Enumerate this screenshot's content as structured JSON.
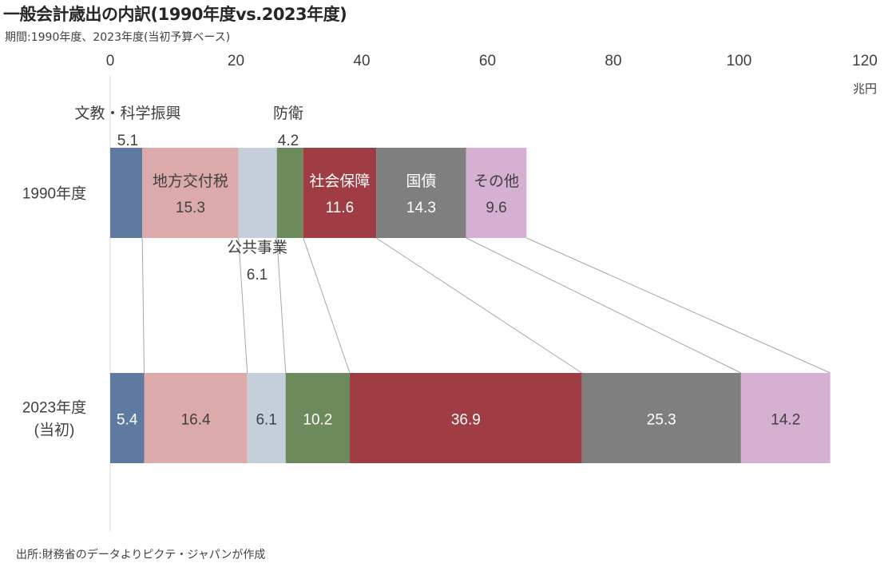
{
  "chart_data": {
    "type": "bar",
    "stacked": true,
    "orientation": "horizontal",
    "title": "一般会計歳出の内訳(1990年度vs.2023年度)",
    "subtitle": "期間:1990年度、2023年度(当初予算ベース)",
    "source": "出所:財務省のデータよりピクテ・ジャパンが作成",
    "xlabel": "兆円",
    "xlim": [
      0,
      120
    ],
    "xticks": [
      "0",
      "20",
      "40",
      "60",
      "80",
      "100",
      "120"
    ],
    "categories": [
      "1990年度",
      "2023年度\n(当初)"
    ],
    "category_labels": [
      [
        "1990年度"
      ],
      [
        "2023年度",
        "(当初)"
      ]
    ],
    "series": [
      {
        "name": "文教・科学振興",
        "color": "#5f7aa0",
        "values": [
          5.1,
          5.4
        ]
      },
      {
        "name": "地方交付税",
        "color": "#dcaaab",
        "values": [
          15.3,
          16.4
        ]
      },
      {
        "name": "公共事業",
        "color": "#c4cfdb",
        "values": [
          6.1,
          6.1
        ]
      },
      {
        "name": "防衛",
        "color": "#6d8a5d",
        "values": [
          4.2,
          10.2
        ]
      },
      {
        "name": "社会保障",
        "color": "#a03c43",
        "values": [
          11.6,
          36.9
        ]
      },
      {
        "name": "国債",
        "color": "#7f7f7f",
        "values": [
          14.3,
          25.3
        ]
      },
      {
        "name": "その他",
        "color": "#d5b0d2",
        "values": [
          9.6,
          14.2
        ]
      }
    ],
    "value_labels": [
      [
        "5.1",
        "15.3",
        "6.1",
        "4.2",
        "11.6",
        "14.3",
        "9.6"
      ],
      [
        "5.4",
        "16.4",
        "6.1",
        "10.2",
        "36.9",
        "25.3",
        "14.2"
      ]
    ]
  }
}
